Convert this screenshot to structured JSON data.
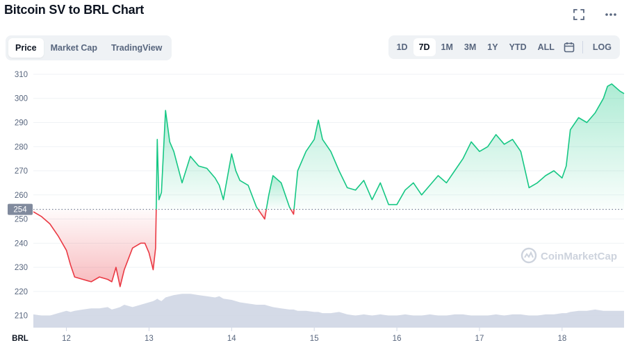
{
  "header": {
    "title": "Bitcoin SV to BRL Chart",
    "fullscreen_icon": "fullscreen-icon",
    "more_icon": "more-horizontal-icon"
  },
  "tabs": [
    {
      "label": "Price",
      "active": true
    },
    {
      "label": "Market Cap",
      "active": false
    },
    {
      "label": "TradingView",
      "active": false
    }
  ],
  "ranges": [
    {
      "label": "1D",
      "active": false
    },
    {
      "label": "7D",
      "active": true
    },
    {
      "label": "1M",
      "active": false
    },
    {
      "label": "3M",
      "active": false
    },
    {
      "label": "1Y",
      "active": false
    },
    {
      "label": "YTD",
      "active": false
    },
    {
      "label": "ALL",
      "active": false
    }
  ],
  "calendar_icon": "calendar-icon",
  "log_label": "LOG",
  "watermark": "CoinMarketCap",
  "colors": {
    "up": "#16c784",
    "down": "#ea3943",
    "volume": "#cfd6e4",
    "baseline_badge": "#808a9d"
  },
  "chart_data": {
    "type": "area",
    "title": "Bitcoin SV to BRL Chart",
    "currency_label": "BRL",
    "baseline": 254,
    "ylim": [
      205,
      312
    ],
    "yticks": [
      210,
      220,
      230,
      240,
      250,
      260,
      270,
      280,
      290,
      300,
      310
    ],
    "xticks": [
      "12",
      "13",
      "14",
      "15",
      "16",
      "17",
      "18"
    ],
    "grid": "horizontal",
    "x": [
      11.6,
      11.7,
      11.8,
      11.9,
      12.0,
      12.05,
      12.1,
      12.2,
      12.3,
      12.4,
      12.5,
      12.55,
      12.6,
      12.65,
      12.7,
      12.8,
      12.9,
      12.95,
      13.0,
      13.05,
      13.08,
      13.1,
      13.12,
      13.15,
      13.2,
      13.25,
      13.3,
      13.4,
      13.5,
      13.6,
      13.7,
      13.8,
      13.85,
      13.9,
      14.0,
      14.05,
      14.1,
      14.2,
      14.3,
      14.4,
      14.45,
      14.5,
      14.6,
      14.7,
      14.75,
      14.8,
      14.9,
      15.0,
      15.05,
      15.1,
      15.2,
      15.3,
      15.4,
      15.5,
      15.6,
      15.7,
      15.8,
      15.9,
      16.0,
      16.1,
      16.2,
      16.3,
      16.4,
      16.5,
      16.6,
      16.7,
      16.8,
      16.9,
      17.0,
      17.1,
      17.2,
      17.3,
      17.4,
      17.5,
      17.6,
      17.7,
      17.8,
      17.9,
      18.0,
      18.05,
      18.1,
      18.2,
      18.3,
      18.4,
      18.5,
      18.55,
      18.6,
      18.7,
      18.75
    ],
    "values": [
      253,
      251,
      248,
      243,
      237,
      231,
      226,
      225,
      224,
      226,
      225,
      224,
      230,
      222,
      229,
      238,
      240,
      240,
      236,
      229,
      238,
      283,
      258,
      261,
      295,
      282,
      278,
      265,
      276,
      272,
      271,
      267,
      264,
      258,
      277,
      270,
      266,
      264,
      255,
      250,
      260,
      268,
      265,
      255,
      252,
      270,
      278,
      283,
      291,
      283,
      278,
      270,
      263,
      262,
      266,
      258,
      265,
      256,
      256,
      262,
      265,
      260,
      264,
      268,
      265,
      270,
      275,
      282,
      278,
      280,
      285,
      281,
      283,
      278,
      263,
      265,
      268,
      270,
      267,
      272,
      287,
      292,
      290,
      294,
      300,
      305,
      306,
      303,
      302
    ],
    "volume": [
      210.5,
      210,
      210,
      211,
      212,
      211.5,
      212,
      212.5,
      213,
      213,
      213.5,
      212.5,
      213,
      213.5,
      214.5,
      213.5,
      214.5,
      215,
      215.5,
      216,
      216.5,
      217,
      216.5,
      216,
      217.5,
      218,
      218.5,
      219,
      219,
      218.5,
      218,
      217.5,
      218,
      217,
      216.5,
      216,
      215.5,
      215,
      214.5,
      214.5,
      214,
      213.5,
      213,
      212.5,
      212.5,
      212,
      212,
      211.5,
      211.5,
      211,
      211,
      211.5,
      210.5,
      210,
      210.5,
      210,
      210.5,
      210,
      210,
      210.5,
      210,
      210,
      210.5,
      210,
      210,
      210.5,
      210.5,
      210,
      210,
      210,
      210.5,
      210,
      210.5,
      210.5,
      210,
      210,
      210.5,
      210.5,
      211,
      211,
      211.5,
      212,
      212,
      212.5,
      212,
      212,
      212,
      212,
      212
    ]
  }
}
